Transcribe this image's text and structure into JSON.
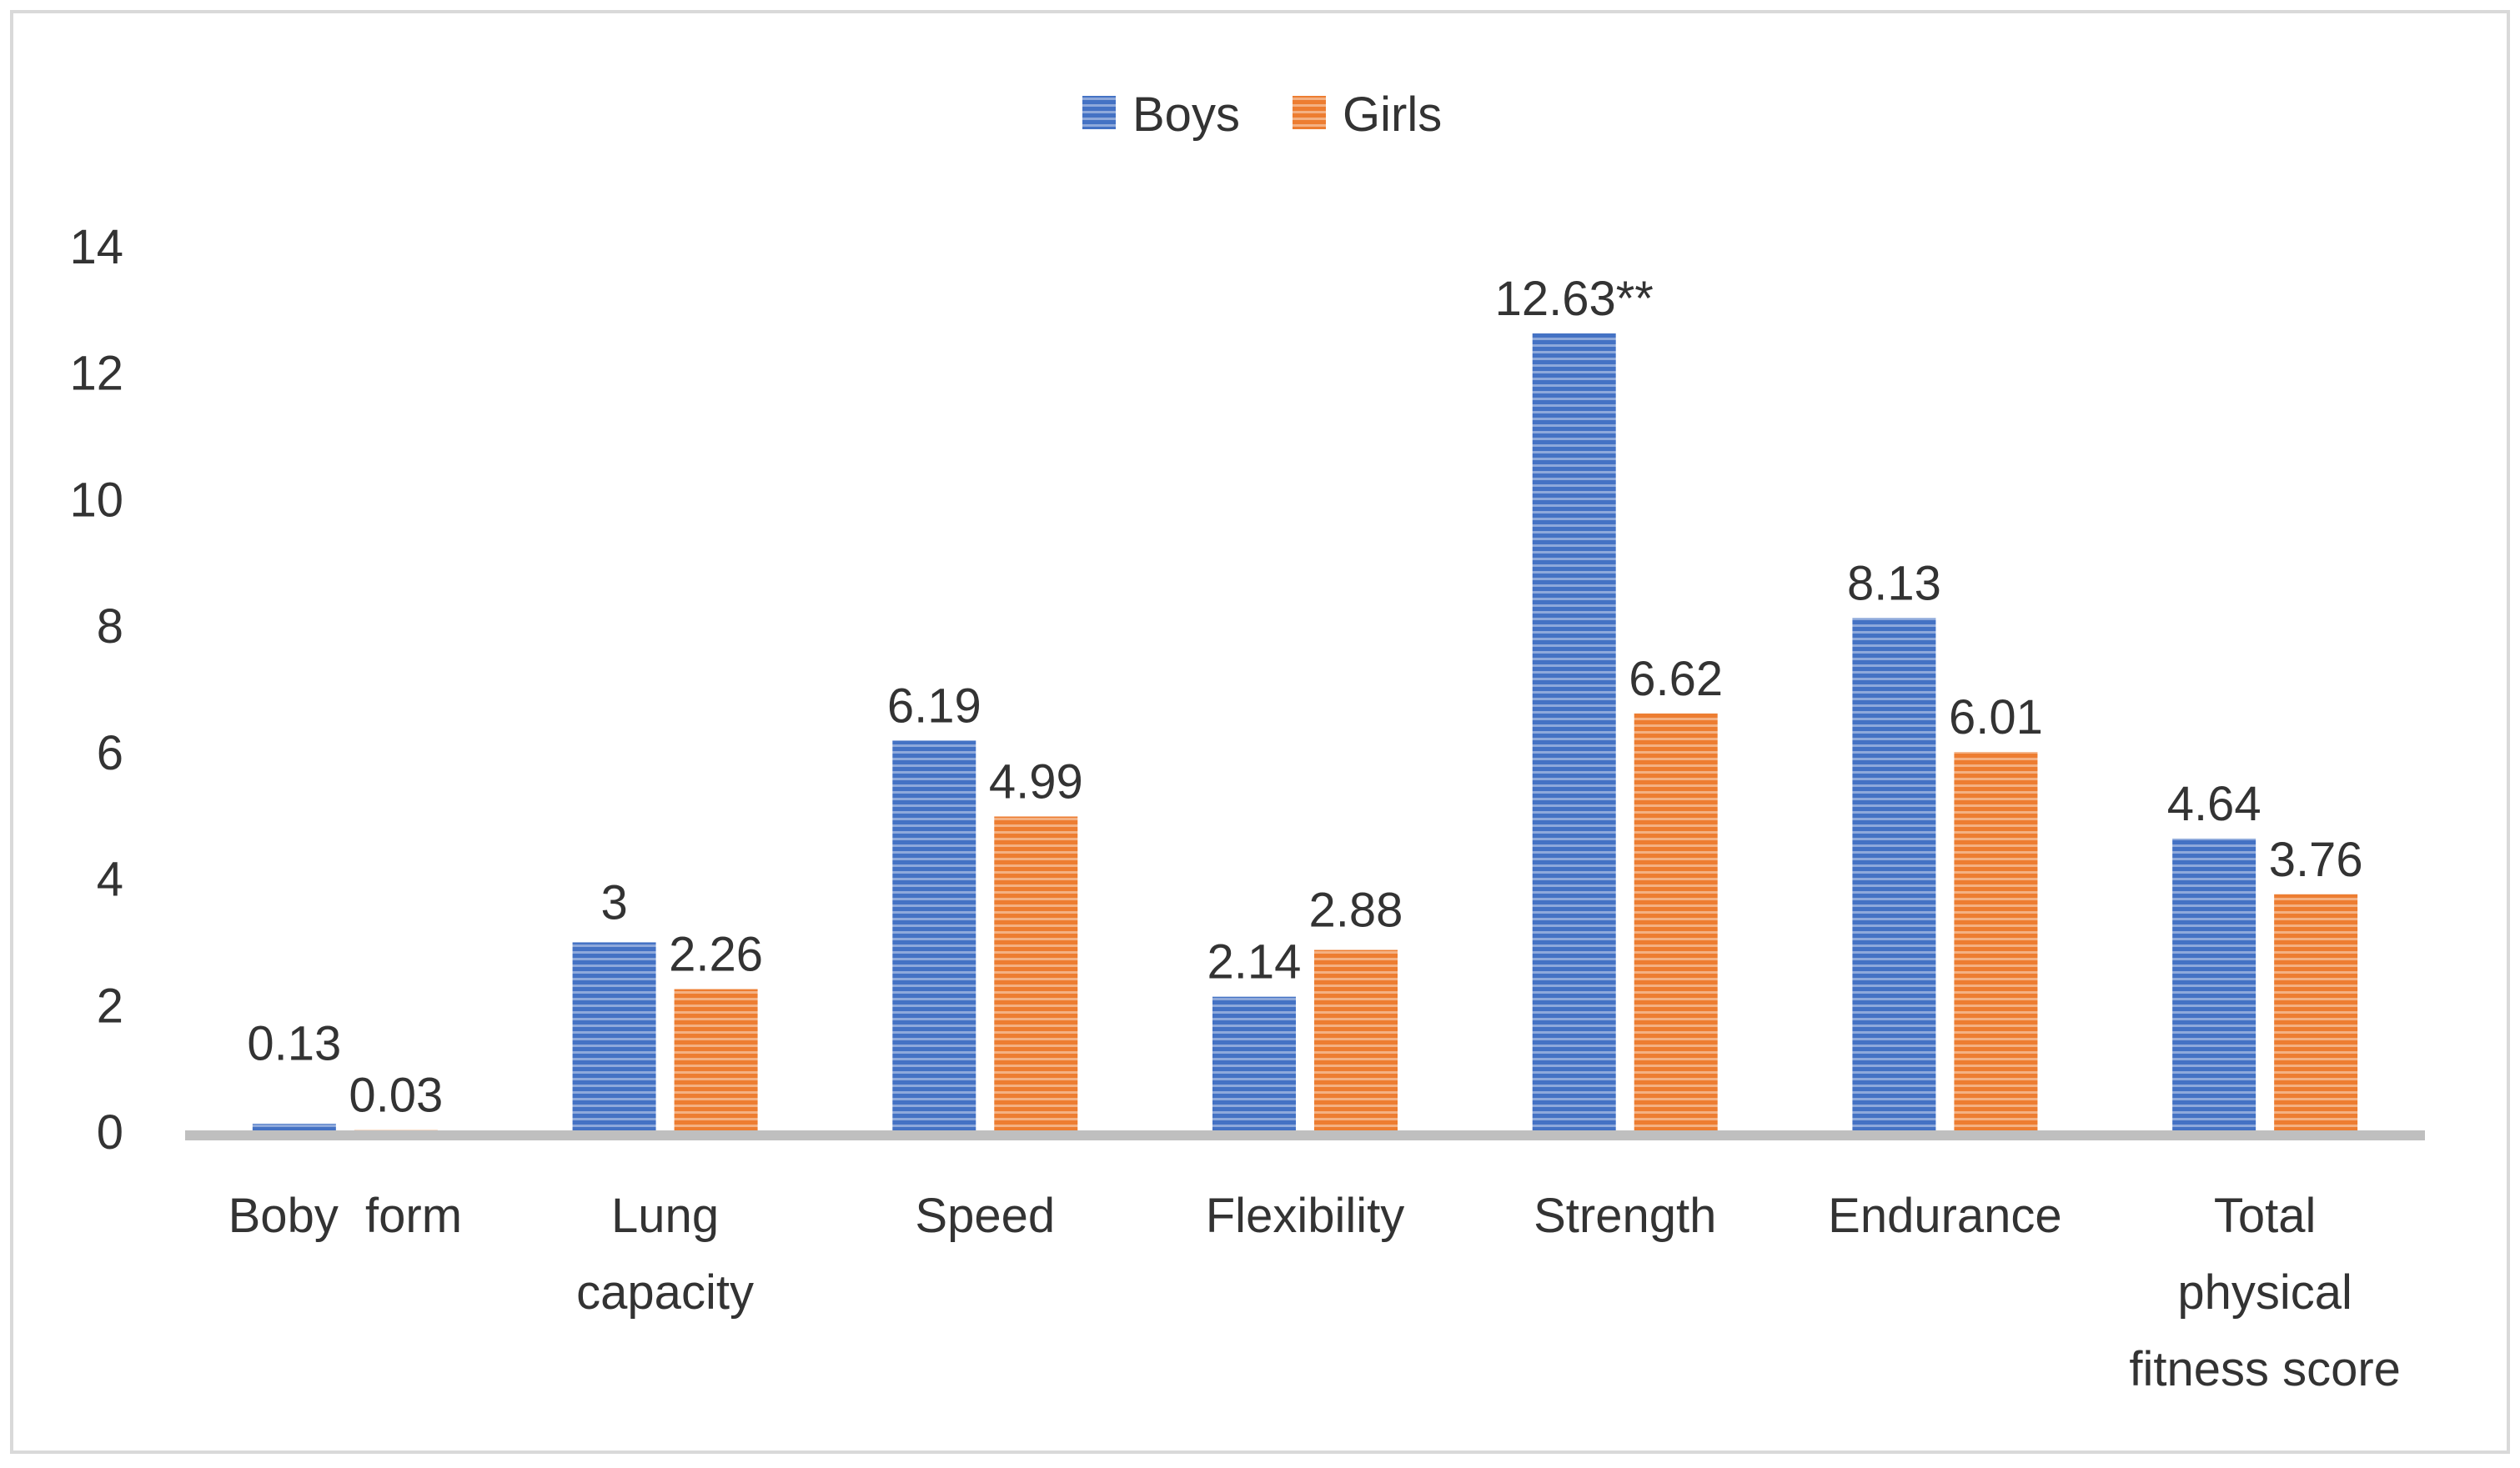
{
  "chart_data": {
    "type": "bar",
    "title": "",
    "xlabel": "",
    "ylabel": "",
    "ylim": [
      0,
      14
    ],
    "yticks": [
      0,
      2,
      4,
      6,
      8,
      10,
      12,
      14
    ],
    "categories": [
      [
        "Boby  form"
      ],
      [
        "Lung",
        "capacity"
      ],
      [
        "Speed"
      ],
      [
        "Flexibility"
      ],
      [
        "Strength"
      ],
      [
        "Endurance"
      ],
      [
        "Total",
        "physical",
        "fitness score"
      ]
    ],
    "legend": {
      "position": "top-center",
      "entries": [
        "Boys",
        "Girls"
      ]
    },
    "grid": false,
    "series": [
      {
        "name": "Boys",
        "color": "#4472C4",
        "values": [
          0.13,
          3,
          6.19,
          2.14,
          12.63,
          8.13,
          4.64
        ],
        "labels": [
          "0.13",
          "3",
          "6.19",
          "2.14",
          "12.63**",
          "8.13",
          "4.64"
        ]
      },
      {
        "name": "Girls",
        "color": "#ED7D31",
        "values": [
          0.03,
          2.26,
          4.99,
          2.88,
          6.62,
          6.01,
          3.76
        ],
        "labels": [
          "0.03",
          "2.26",
          "4.99",
          "2.88",
          "6.62",
          "6.01",
          "3.76"
        ]
      }
    ]
  }
}
